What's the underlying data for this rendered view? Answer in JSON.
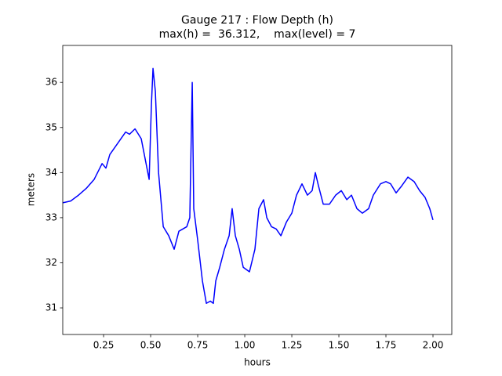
{
  "chart_data": {
    "type": "line",
    "title": "Gauge 217 : Flow Depth (h)",
    "subtitle": "max(h) =  36.312,    max(level) = 7",
    "x_label": "hours",
    "y_label": "meters",
    "xlim": [
      0.033,
      2.1
    ],
    "ylim": [
      30.41,
      36.82
    ],
    "xticks": [
      0.25,
      {
        "value": 0.5,
        "label": "0.50"
      },
      0.75,
      {
        "value": 1.0,
        "label": "1.00"
      },
      1.25,
      {
        "value": 1.5,
        "label": "1.50"
      },
      1.75,
      {
        "value": 2.0,
        "label": "2.00"
      }
    ],
    "yticks": [
      31,
      32,
      33,
      34,
      35,
      36
    ],
    "grid": false,
    "x": [
      0.033,
      0.075,
      0.117,
      0.158,
      0.2,
      0.242,
      0.2625,
      0.283,
      0.325,
      0.367,
      0.3875,
      0.417,
      0.45,
      0.471,
      0.492,
      0.504,
      0.5125,
      0.525,
      0.542,
      0.567,
      0.596,
      0.625,
      0.65,
      0.692,
      0.708,
      0.721,
      0.729,
      0.75,
      0.775,
      0.796,
      0.817,
      0.833,
      0.846,
      0.867,
      0.892,
      0.917,
      0.933,
      0.95,
      0.971,
      0.992,
      1.025,
      1.054,
      1.075,
      1.1,
      1.117,
      1.142,
      1.167,
      1.192,
      1.221,
      1.25,
      1.275,
      1.304,
      1.333,
      1.358,
      1.375,
      1.392,
      1.417,
      1.45,
      1.483,
      1.513,
      1.542,
      1.567,
      1.596,
      1.625,
      1.658,
      1.683,
      1.721,
      1.75,
      1.775,
      1.804,
      1.833,
      1.867,
      1.9,
      1.929,
      1.958,
      1.983,
      2.0
    ],
    "series": [
      {
        "color": "#0000ff",
        "values": [
          33.33,
          33.37,
          33.5,
          33.65,
          33.85,
          34.2,
          34.1,
          34.4,
          34.65,
          34.9,
          34.85,
          34.97,
          34.75,
          34.3,
          33.85,
          35.5,
          36.31,
          35.8,
          34.0,
          32.8,
          32.6,
          32.3,
          32.7,
          32.8,
          33.0,
          36.0,
          33.2,
          32.5,
          31.6,
          31.1,
          31.15,
          31.1,
          31.6,
          31.9,
          32.3,
          32.6,
          33.2,
          32.6,
          32.3,
          31.9,
          31.8,
          32.3,
          33.2,
          33.4,
          33.0,
          32.8,
          32.75,
          32.6,
          32.9,
          33.1,
          33.5,
          33.75,
          33.5,
          33.6,
          34.0,
          33.7,
          33.3,
          33.3,
          33.5,
          33.6,
          33.4,
          33.5,
          33.2,
          33.1,
          33.2,
          33.5,
          33.75,
          33.8,
          33.75,
          33.55,
          33.7,
          33.9,
          33.8,
          33.6,
          33.45,
          33.2,
          32.95
        ]
      }
    ]
  }
}
